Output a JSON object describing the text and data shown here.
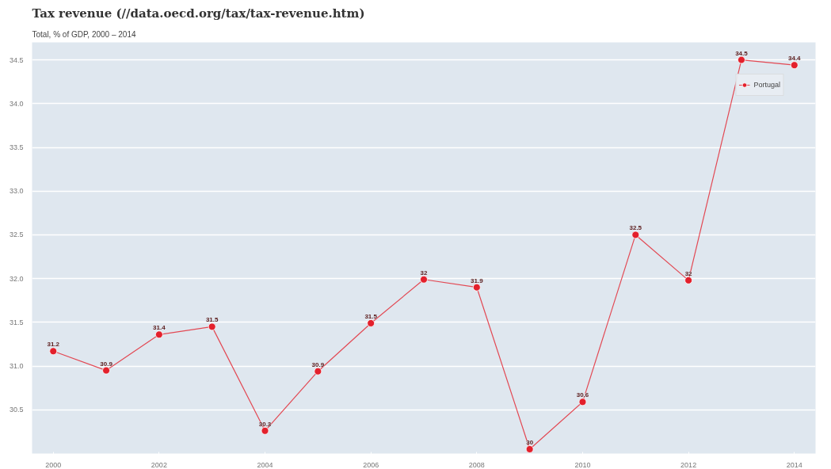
{
  "chart_data": {
    "type": "line",
    "title": "Tax revenue (//data.oecd.org/tax/tax-revenue.htm)",
    "subtitle": "Total, % of GDP, 2000 – 2014",
    "x": [
      2000,
      2001,
      2002,
      2003,
      2004,
      2005,
      2006,
      2007,
      2008,
      2009,
      2010,
      2011,
      2012,
      2013,
      2014
    ],
    "series": [
      {
        "name": "Portugal",
        "color": "#e3202c",
        "values": [
          31.17,
          30.95,
          31.36,
          31.45,
          30.26,
          30.94,
          31.49,
          31.99,
          31.9,
          30.05,
          30.59,
          32.5,
          31.98,
          34.5,
          34.44
        ],
        "value_labels": [
          "31.2",
          "30.9",
          "31.4",
          "31.5",
          "30.3",
          "30.9",
          "31.5",
          "32",
          "31.9",
          "30",
          "30.6",
          "32.5",
          "32",
          "34.5",
          "34.4"
        ]
      }
    ],
    "xlim": [
      1999.6,
      2014.4
    ],
    "xticks": [
      2000,
      2002,
      2004,
      2006,
      2008,
      2010,
      2012,
      2014
    ],
    "ylim": [
      30.0,
      34.7
    ],
    "yticks": [
      {
        "value": 30.5,
        "label": "30.5"
      },
      {
        "value": 31.0,
        "label": "31.0"
      },
      {
        "value": 31.5,
        "label": "31.5"
      },
      {
        "value": 32.0,
        "label": "32.0"
      },
      {
        "value": 32.5,
        "label": "32.5"
      },
      {
        "value": 33.0,
        "label": "33.0"
      },
      {
        "value": 33.5,
        "label": "33.5"
      },
      {
        "value": 34.0,
        "label": "34.0"
      },
      {
        "value": 34.5,
        "label": "34.5"
      }
    ],
    "grid": "y",
    "legend": "top right",
    "marker": "circle",
    "line_style": "solid"
  }
}
